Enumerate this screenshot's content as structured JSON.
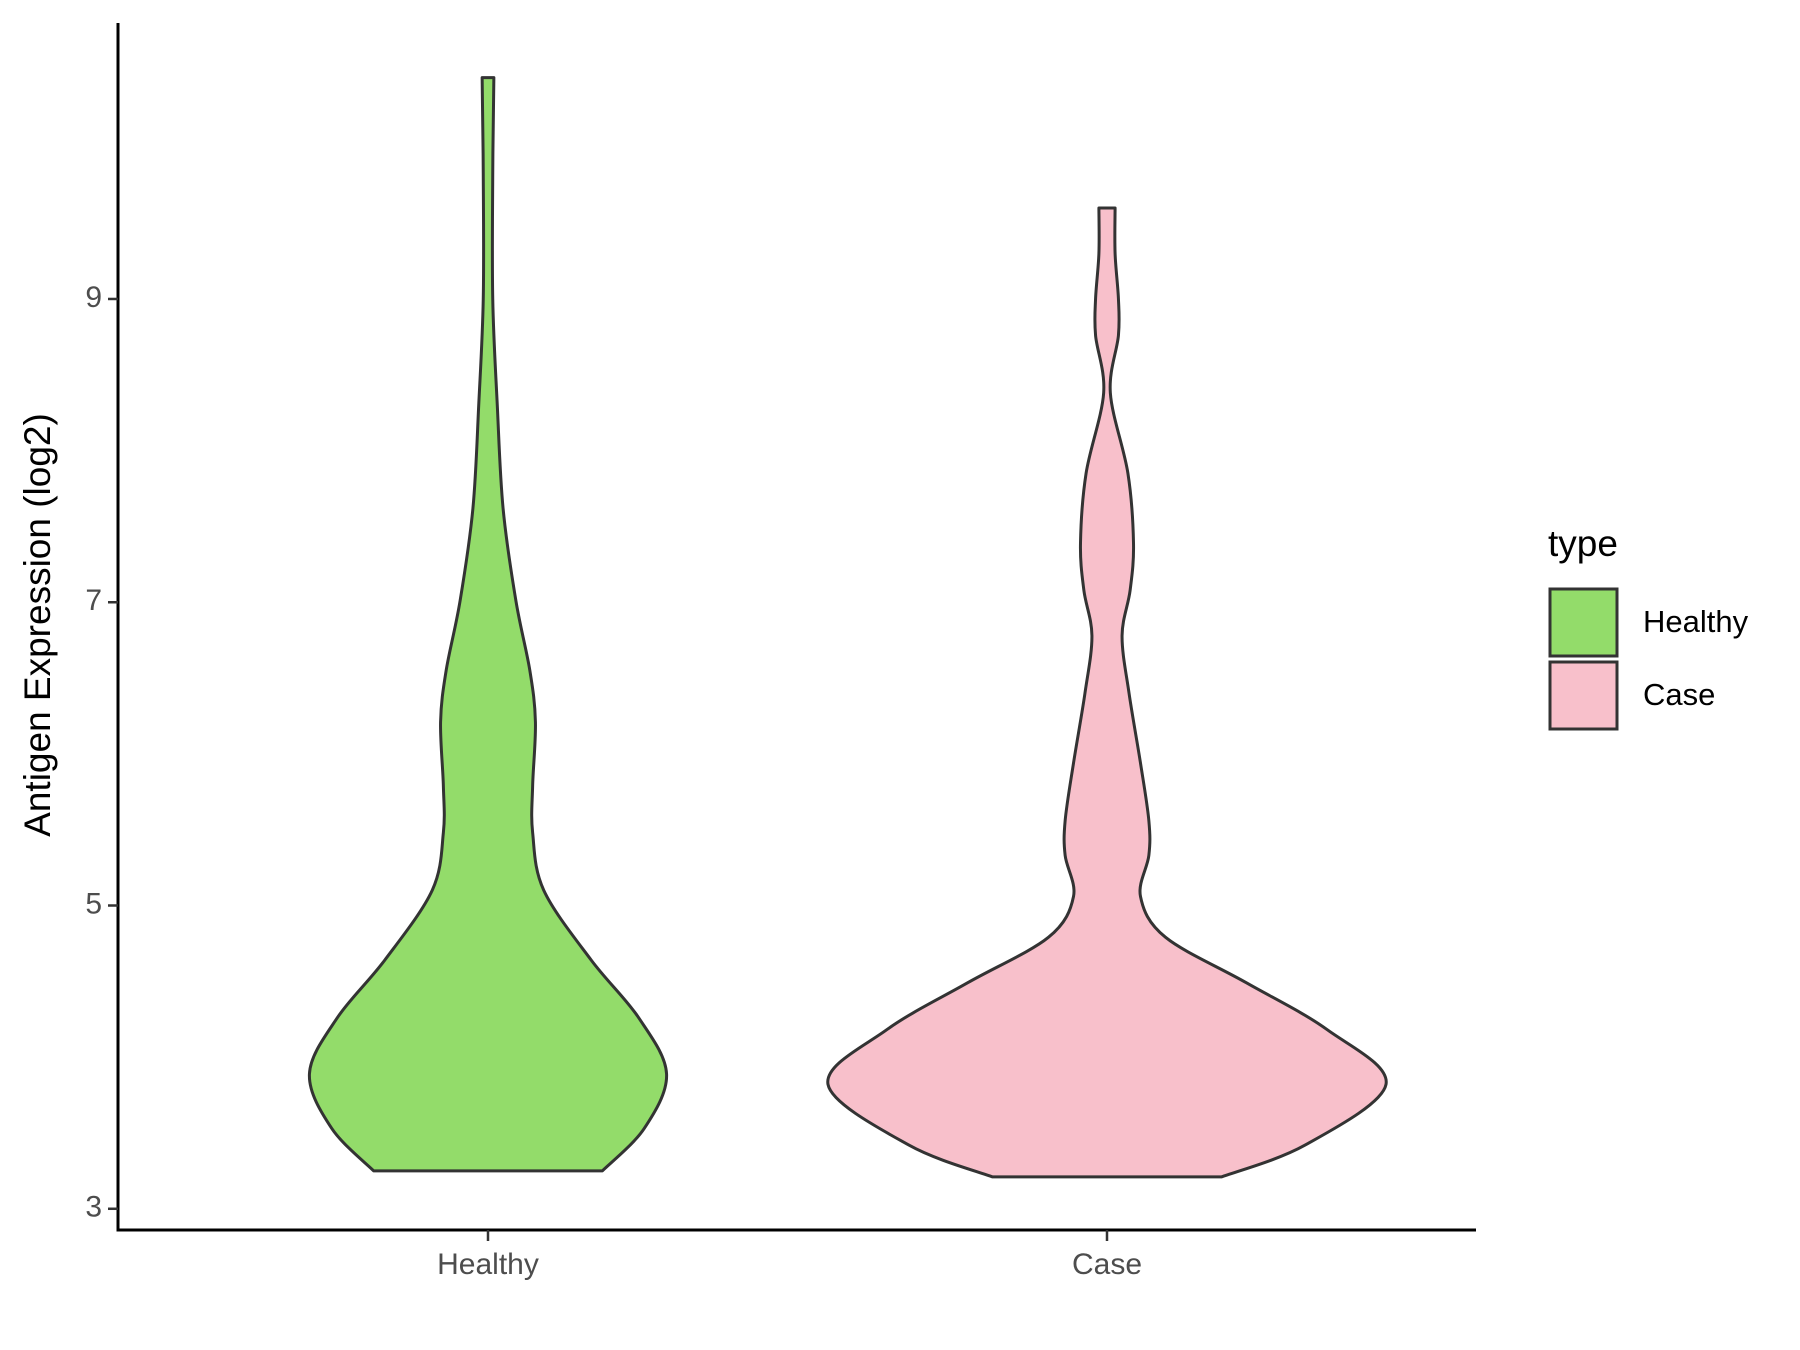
{
  "chart_data": {
    "type": "violin",
    "y_label": "Antigen Expression (log2)",
    "categories": [
      "Healthy",
      "Case"
    ],
    "ylim": [
      2.86,
      10.82
    ],
    "yticks": [
      3,
      5,
      7,
      9
    ],
    "legend_title": "type",
    "legend_position": "right",
    "series": [
      {
        "name": "Healthy",
        "color": "#93dc6a",
        "y": [
          3.25,
          3.53,
          3.89,
          4.26,
          4.64,
          5.1,
          5.48,
          5.79,
          6.21,
          6.55,
          7.01,
          7.62,
          8.31,
          9.0,
          9.83,
          10.46
        ],
        "density": [
          0.41,
          0.56,
          0.64,
          0.54,
          0.37,
          0.2,
          0.16,
          0.16,
          0.17,
          0.15,
          0.1,
          0.054,
          0.033,
          0.017,
          0.017,
          0.021
        ]
      },
      {
        "name": "Case",
        "color": "#f8c0cb",
        "y": [
          3.21,
          3.42,
          3.82,
          4.18,
          4.49,
          4.79,
          5.06,
          5.33,
          5.56,
          5.94,
          6.4,
          6.78,
          7.08,
          7.39,
          7.85,
          8.38,
          8.76,
          9.0,
          9.3,
          9.6
        ],
        "density": [
          0.41,
          0.71,
          1.0,
          0.79,
          0.5,
          0.21,
          0.12,
          0.15,
          0.15,
          0.12,
          0.079,
          0.054,
          0.083,
          0.095,
          0.075,
          0.012,
          0.041,
          0.041,
          0.029,
          0.029
        ]
      }
    ]
  }
}
